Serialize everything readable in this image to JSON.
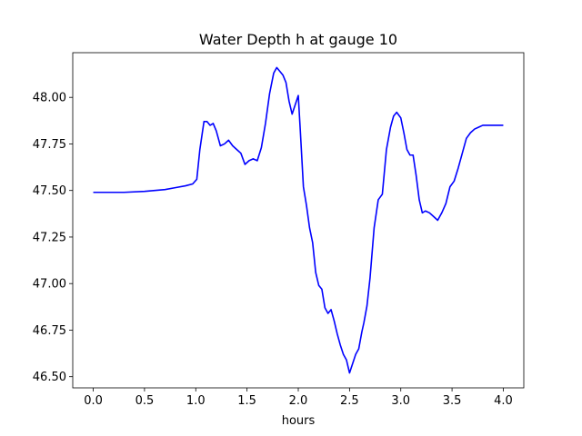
{
  "chart_data": {
    "type": "line",
    "title": "Water Depth h at gauge 10",
    "xlabel": "hours",
    "ylabel": "",
    "xlim": [
      -0.2,
      4.2
    ],
    "ylim": [
      46.44,
      48.24
    ],
    "x_ticks": [
      0.0,
      0.5,
      1.0,
      1.5,
      2.0,
      2.5,
      3.0,
      3.5,
      4.0
    ],
    "x_tick_labels": [
      "0.0",
      "0.5",
      "1.0",
      "1.5",
      "2.0",
      "2.5",
      "3.0",
      "3.5",
      "4.0"
    ],
    "y_ticks": [
      46.5,
      46.75,
      47.0,
      47.25,
      47.5,
      47.75,
      48.0
    ],
    "y_tick_labels": [
      "46.50",
      "46.75",
      "47.00",
      "47.25",
      "47.50",
      "47.75",
      "48.00"
    ],
    "grid": false,
    "legend": "none",
    "series": [
      {
        "color": "#0000ff",
        "x": [
          0.0,
          0.3,
          0.5,
          0.7,
          0.8,
          0.9,
          0.97,
          1.01,
          1.04,
          1.08,
          1.11,
          1.14,
          1.17,
          1.2,
          1.24,
          1.28,
          1.32,
          1.36,
          1.4,
          1.44,
          1.48,
          1.52,
          1.56,
          1.6,
          1.64,
          1.68,
          1.72,
          1.76,
          1.79,
          1.82,
          1.85,
          1.88,
          1.91,
          1.94,
          1.97,
          2.0,
          2.02,
          2.05,
          2.08,
          2.11,
          2.14,
          2.17,
          2.2,
          2.23,
          2.26,
          2.29,
          2.32,
          2.35,
          2.38,
          2.41,
          2.44,
          2.47,
          2.5,
          2.53,
          2.56,
          2.59,
          2.62,
          2.64,
          2.67,
          2.7,
          2.74,
          2.78,
          2.82,
          2.86,
          2.9,
          2.93,
          2.96,
          3.0,
          3.03,
          3.06,
          3.09,
          3.12,
          3.15,
          3.18,
          3.21,
          3.24,
          3.28,
          3.32,
          3.36,
          3.4,
          3.44,
          3.48,
          3.52,
          3.56,
          3.6,
          3.64,
          3.68,
          3.72,
          3.76,
          3.8,
          3.84,
          3.88,
          3.92,
          3.96,
          4.0
        ],
        "values": [
          47.49,
          47.49,
          47.495,
          47.505,
          47.515,
          47.525,
          47.535,
          47.56,
          47.72,
          47.87,
          47.87,
          47.85,
          47.86,
          47.82,
          47.74,
          47.75,
          47.77,
          47.74,
          47.72,
          47.7,
          47.64,
          47.66,
          47.67,
          47.66,
          47.73,
          47.86,
          48.02,
          48.13,
          48.16,
          48.14,
          48.12,
          48.08,
          47.98,
          47.91,
          47.96,
          48.01,
          47.82,
          47.52,
          47.42,
          47.3,
          47.22,
          47.06,
          46.99,
          46.97,
          46.87,
          46.84,
          46.86,
          46.8,
          46.73,
          46.67,
          46.62,
          46.59,
          46.52,
          46.57,
          46.62,
          46.65,
          46.74,
          46.79,
          46.88,
          47.03,
          47.3,
          47.45,
          47.48,
          47.72,
          47.84,
          47.9,
          47.92,
          47.89,
          47.81,
          47.72,
          47.69,
          47.69,
          47.58,
          47.45,
          47.38,
          47.39,
          47.38,
          47.36,
          47.34,
          47.38,
          47.43,
          47.52,
          47.55,
          47.62,
          47.7,
          47.78,
          47.81,
          47.83,
          47.84,
          47.85,
          47.85,
          47.85,
          47.85,
          47.85,
          47.85
        ]
      }
    ]
  }
}
